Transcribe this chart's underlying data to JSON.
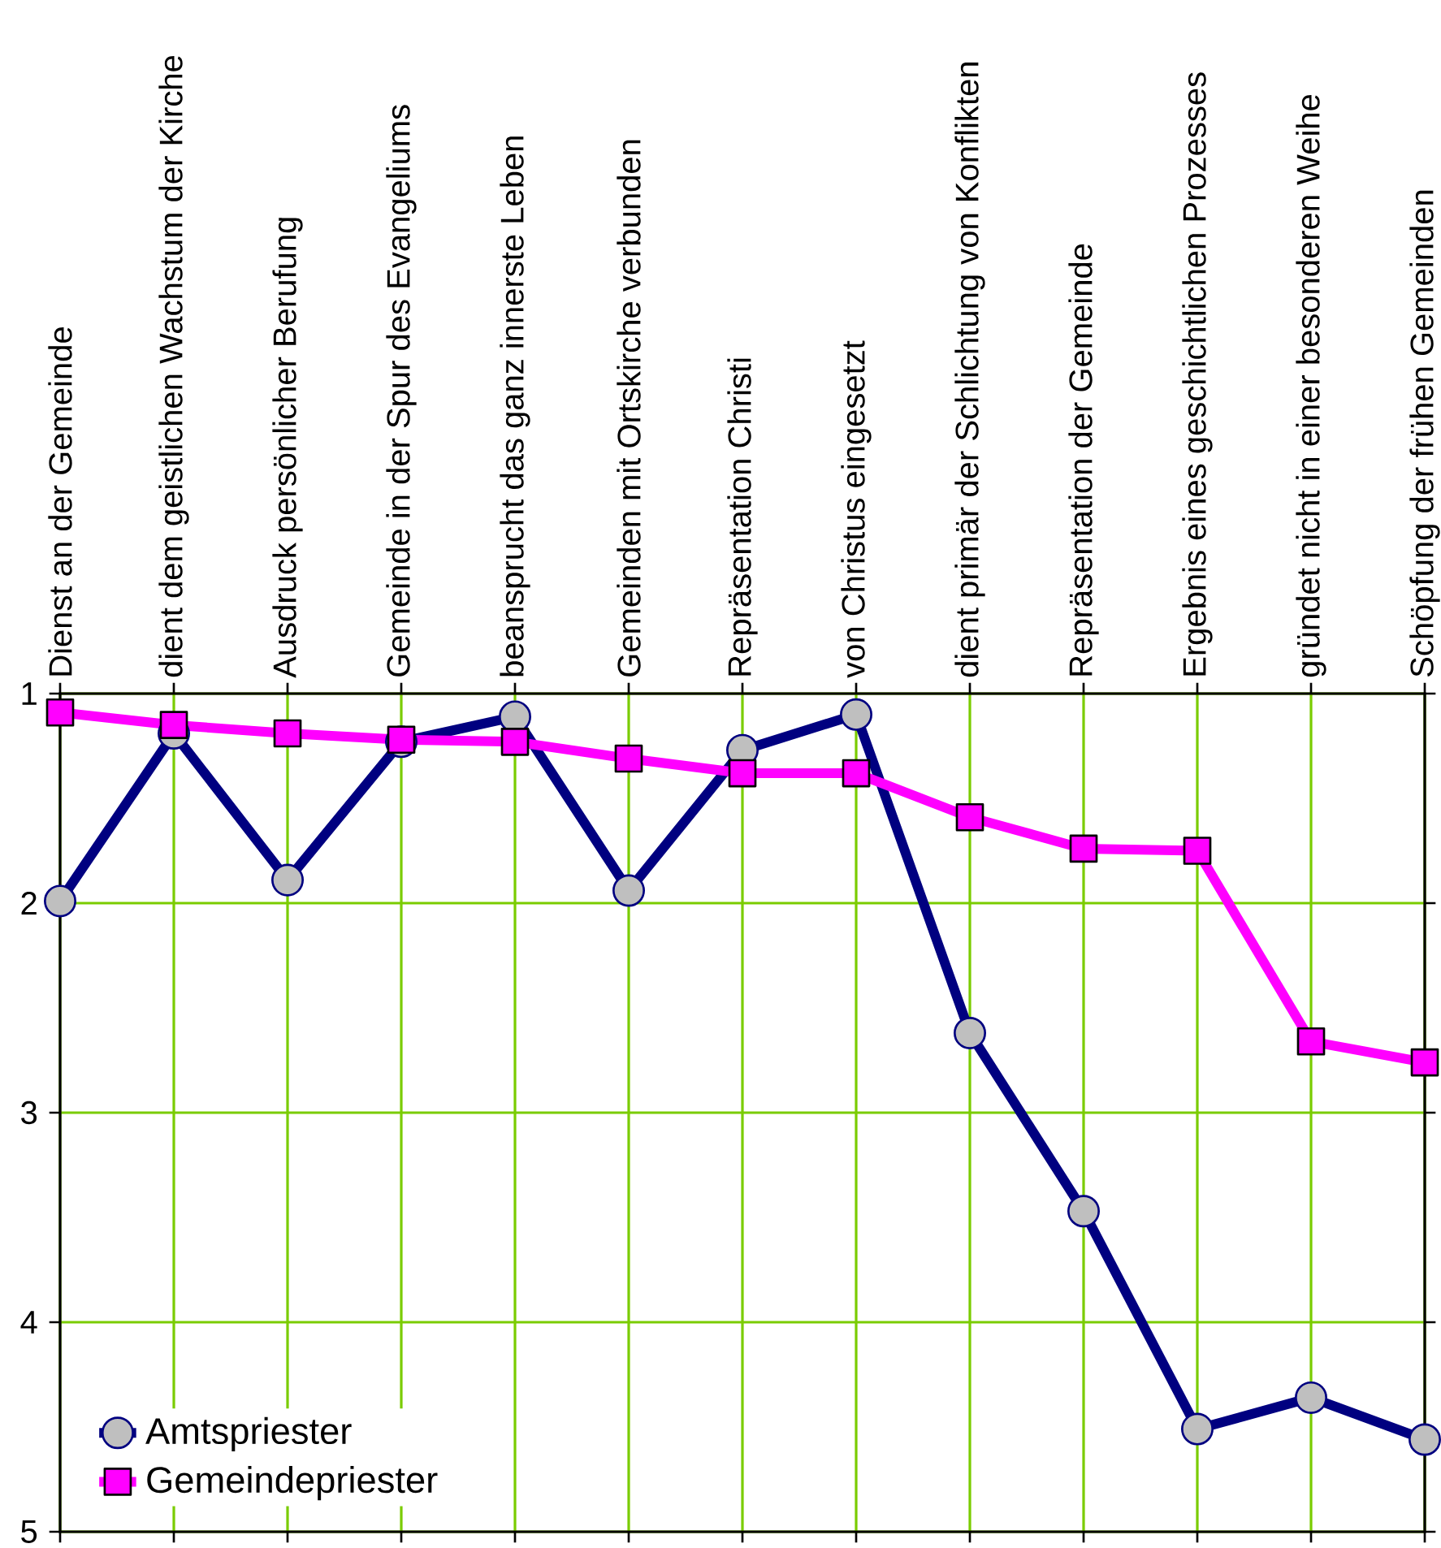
{
  "chart_data": {
    "type": "line",
    "categories": [
      "Dienst an der Gemeinde",
      "dient dem geistlichen Wachstum der Kirche",
      "Ausdruck persönlicher Berufung",
      "Gemeinde in der Spur des Evangeliums",
      "beansprucht das ganz innerste Leben",
      "Gemeinden mit Ortskirche verbunden",
      "Repräsentation Christi",
      "von Christus eingesetzt",
      "dient primär der Schlichtung von Konflikten",
      "Repräsentation der Gemeinde",
      "Ergebnis eines geschichtlichen Prozesses",
      "gründet nicht in einer besonderen Weihe",
      "Schöpfung der frühen Gemeinden"
    ],
    "series": [
      {
        "name": "Amtspriester",
        "color": "#000080",
        "marker": "circle",
        "values": [
          1.99,
          1.19,
          1.89,
          1.23,
          1.11,
          1.94,
          1.27,
          1.1,
          2.62,
          3.47,
          4.51,
          4.36,
          4.56
        ]
      },
      {
        "name": "Gemeindepriester",
        "color": "#ff00ff",
        "marker": "square",
        "values": [
          1.09,
          1.15,
          1.19,
          1.22,
          1.23,
          1.31,
          1.38,
          1.38,
          1.59,
          1.74,
          1.75,
          2.66,
          2.76
        ]
      }
    ],
    "ylim": [
      5,
      1
    ],
    "yticks": [
      1,
      2,
      3,
      4,
      5
    ],
    "grid": true,
    "legend": "bottom left",
    "line_style": "solid"
  }
}
